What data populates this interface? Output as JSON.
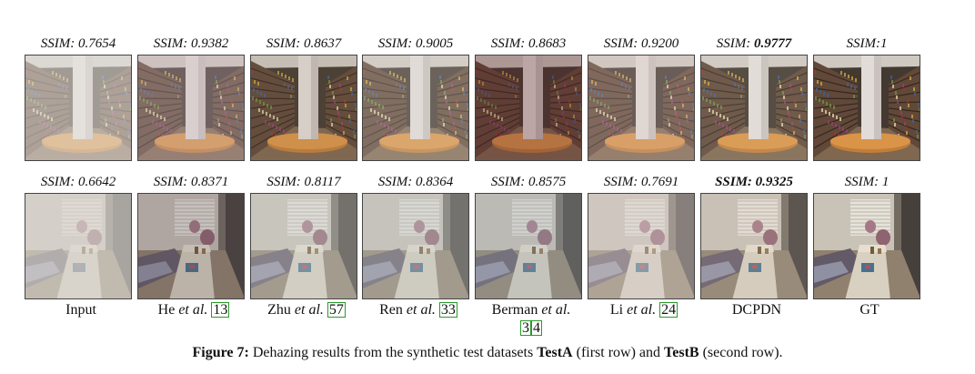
{
  "row1_ssim": [
    "SSIM: 0.7654",
    "SSIM: 0.9382",
    "SSIM: 0.8637",
    "SSIM: 0.9005",
    "SSIM: 0.8683",
    "SSIM: 0.9200",
    "SSIM: ",
    "SSIM:1"
  ],
  "row1_best": "0.9777",
  "row2_ssim": [
    "SSIM: 0.6642",
    "SSIM: 0.8371",
    "SSIM: 0.8117",
    "SSIM: 0.8364",
    "SSIM: 0.8575",
    "SSIM: 0.7691",
    "SSIM: 0.9325",
    "SSIM: 1"
  ],
  "labels": {
    "input": "Input",
    "he_name": "He ",
    "he_etal": "et al.",
    "he_ref": "13",
    "zhu_name": "Zhu ",
    "zhu_etal": "et al.",
    "zhu_ref": "57",
    "ren_name": "Ren ",
    "ren_etal": "et al.",
    "ren_ref": "33",
    "berman_name": "Berman ",
    "berman_etal": "et al.",
    "berman_ref1": "3",
    "berman_ref2": "4",
    "li_name": "Li ",
    "li_etal": "et al.",
    "li_ref": "24",
    "dcpdn": "DCPDN",
    "gt": "GT"
  },
  "caption": {
    "prefix": "Figure 7:",
    "text1": " Dehazing results from the synthetic test datasets ",
    "testa": "TestA",
    "text2": " (first row) and ",
    "testb": "TestB",
    "text3": " (second row)."
  },
  "colors": {
    "ref_border": "#2a9a2a"
  }
}
